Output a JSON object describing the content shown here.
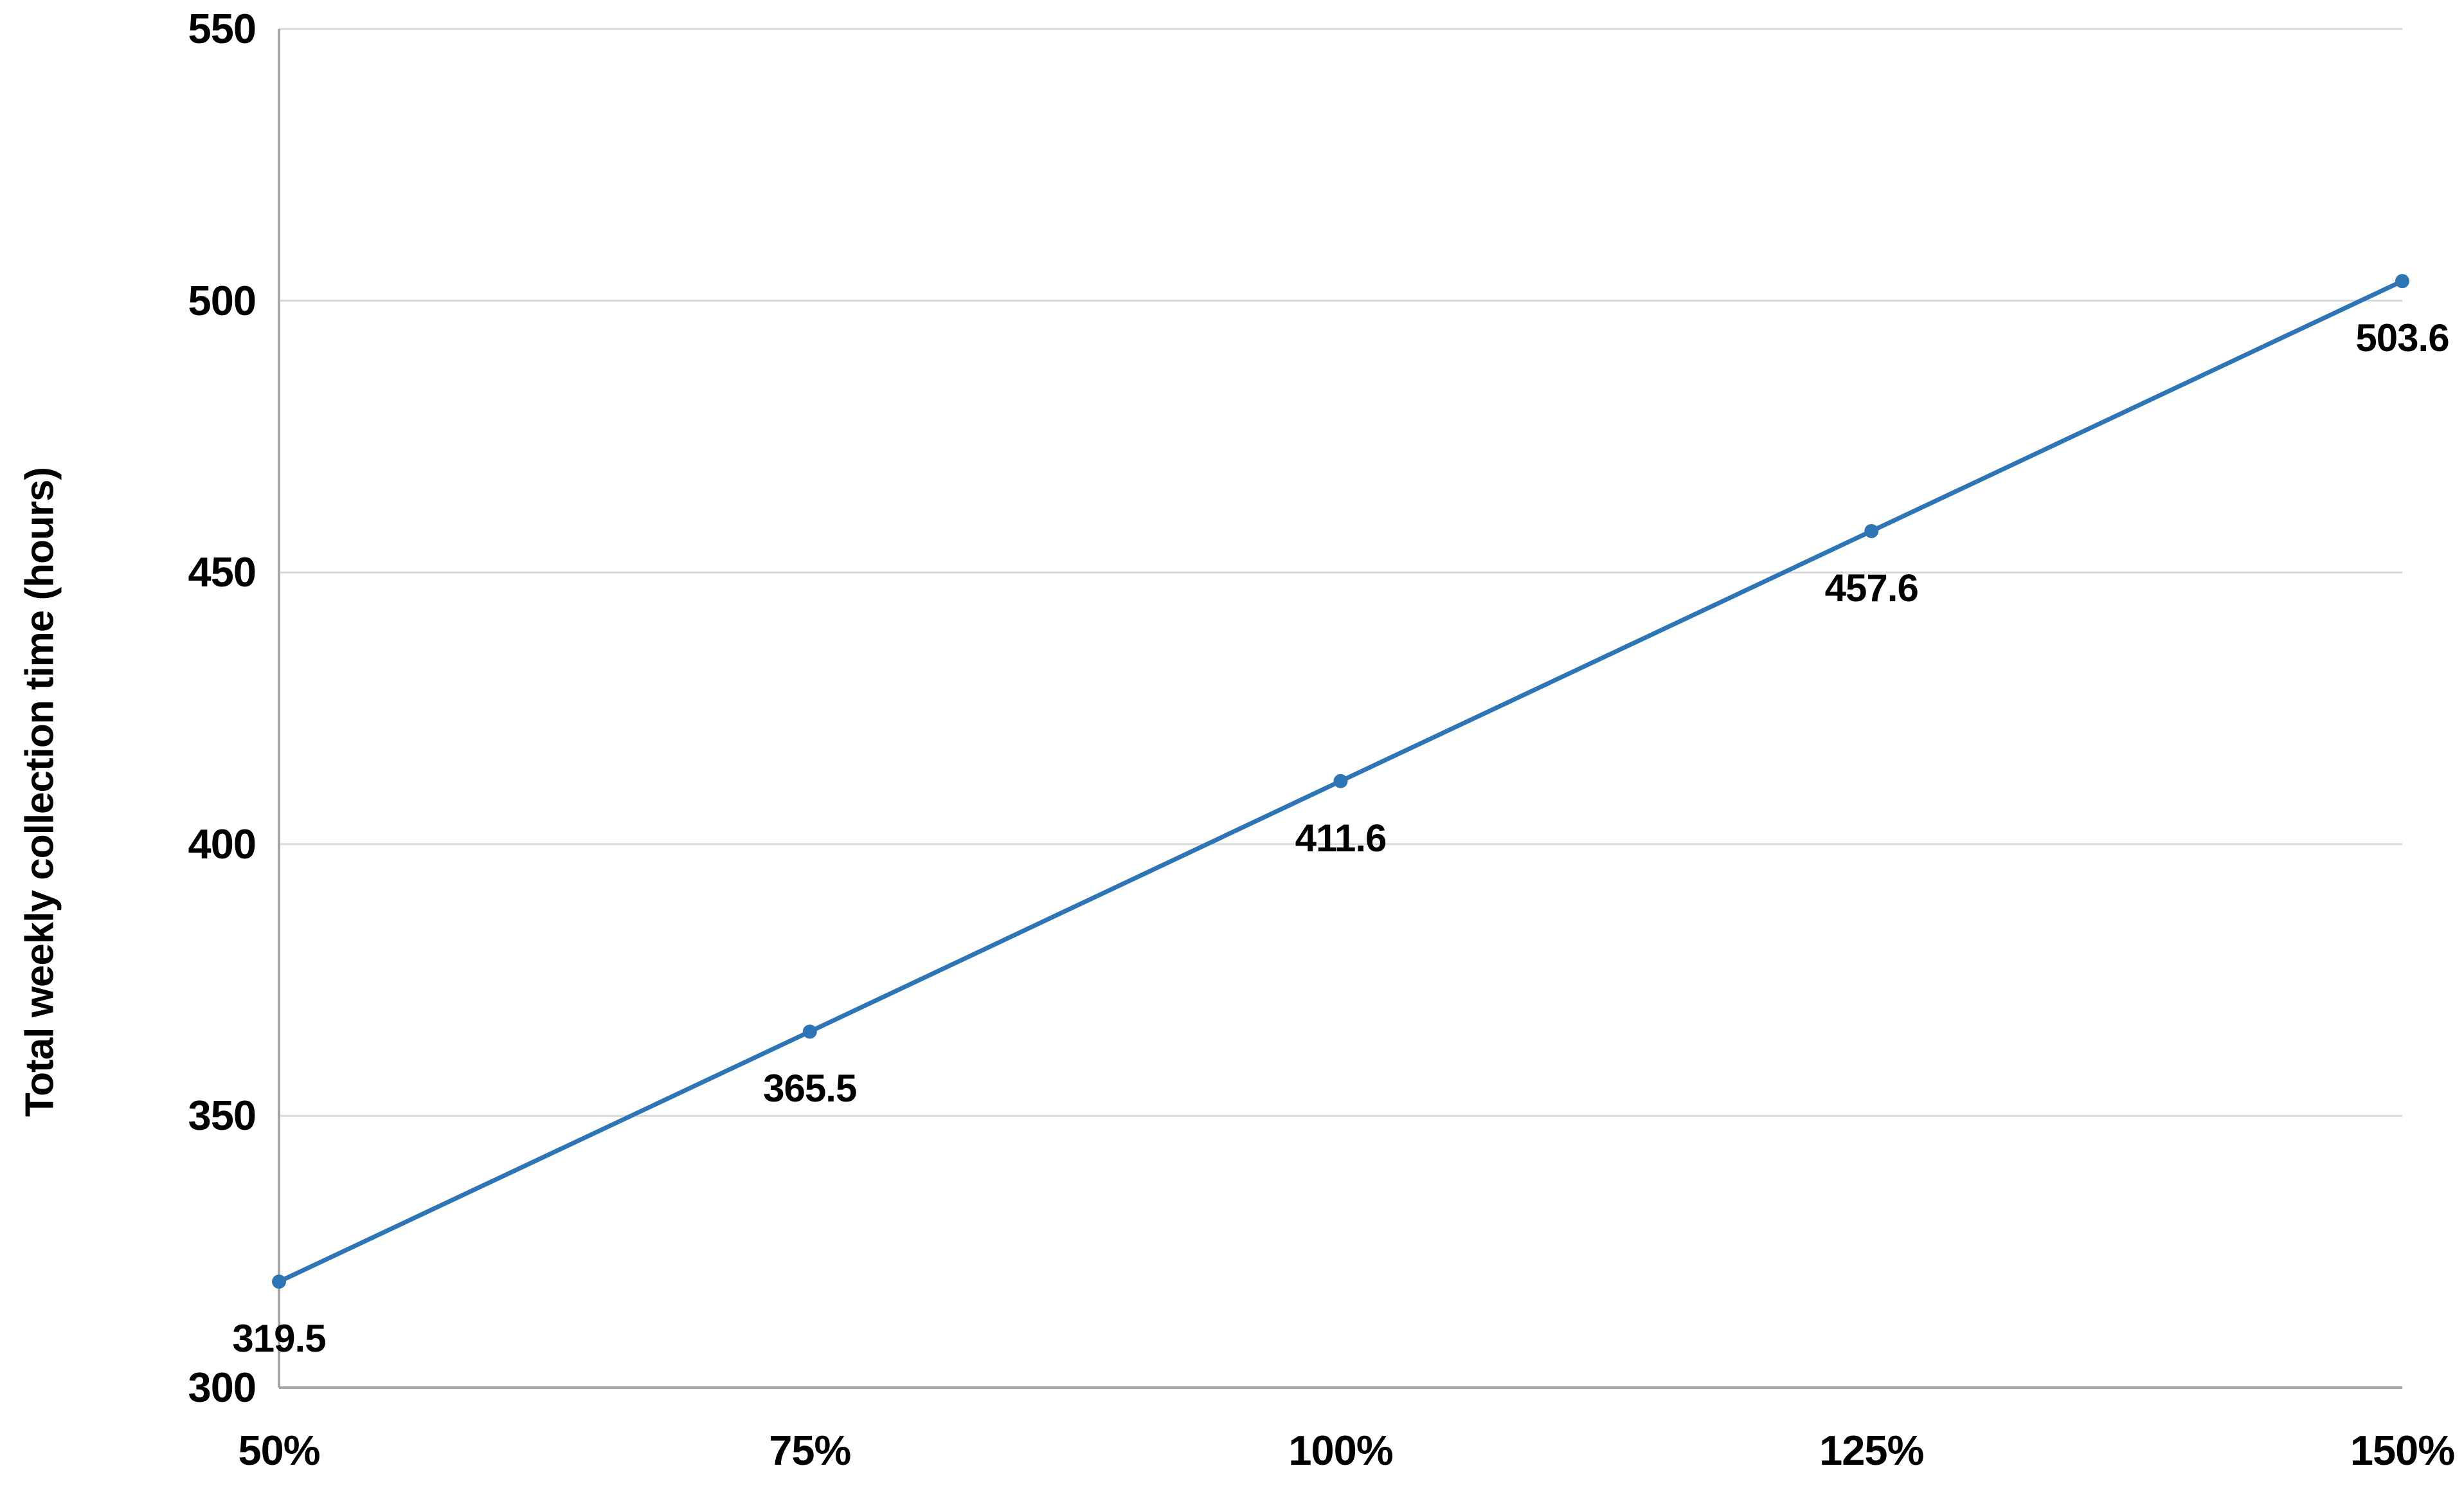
{
  "chart_data": {
    "type": "line",
    "categories": [
      "50%",
      "75%",
      "100%",
      "125%",
      "150%"
    ],
    "series": [
      {
        "values": [
          319.5,
          365.5,
          411.6,
          457.6,
          503.6
        ],
        "color": "#2E75B6",
        "marker": "circle"
      }
    ],
    "data_labels": [
      "319.5",
      "365.5",
      "411.6",
      "457.6",
      "503.6"
    ],
    "title": "",
    "xlabel": "",
    "ylabel": "Total weekly collection time (hours)",
    "ylim": [
      300,
      550
    ],
    "y_ticks": [
      300,
      350,
      400,
      450,
      500,
      550
    ],
    "grid": "horizontal",
    "legend": "none",
    "colors": {
      "line": "#2E75B6",
      "gridline": "#D9D9D9",
      "axis": "#A6A6A6",
      "text": "#000000",
      "background": "#FFFFFF"
    }
  }
}
